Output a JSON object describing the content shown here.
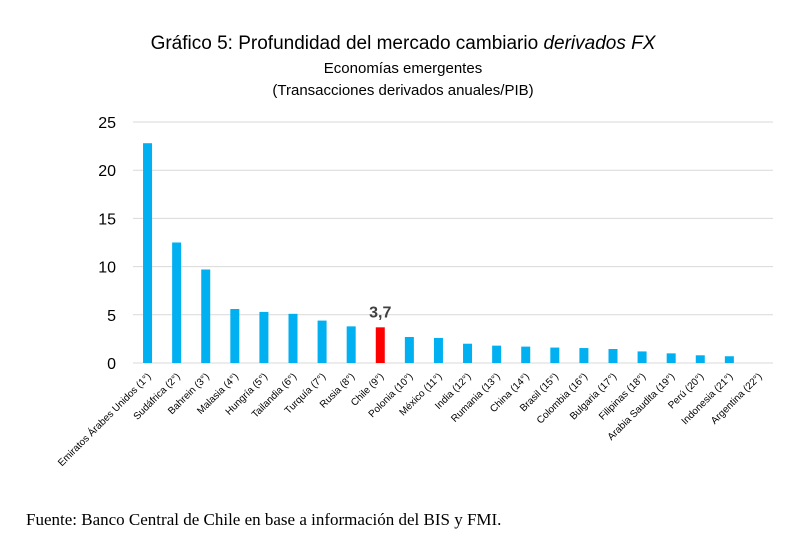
{
  "chart_data": {
    "type": "bar",
    "title": "Gráfico 5: Profundidad del mercado cambiario",
    "title_italic": "derivados FX",
    "subtitle": "Economías emergentes",
    "subtitle2": "(Transacciones derivados anuales/PIB)",
    "categories": [
      "Emiratos Árabes Unidos (1°)",
      "Sudáfrica (2°)",
      "Bahrein (3°)",
      "Malasia (4°)",
      "Hungría (5°)",
      "Tailandia (6°)",
      "Turquía (7°)",
      "Rusia (8°)",
      "Chile (9°)",
      "Polonia (10°)",
      "México (11°)",
      "India (12°)",
      "Rumania (13°)",
      "China (14°)",
      "Brasil (15°)",
      "Colombia (16°)",
      "Bulgaria (17°)",
      "Filipinas (18°)",
      "Arabia Saudita (19°)",
      "Perú (20°)",
      "Indonesia (21°)",
      "Argentina (22°)"
    ],
    "values": [
      22.8,
      12.5,
      9.7,
      5.6,
      5.3,
      5.1,
      4.4,
      3.8,
      3.7,
      2.7,
      2.6,
      2.0,
      1.8,
      1.7,
      1.6,
      1.55,
      1.45,
      1.2,
      1.0,
      0.8,
      0.7,
      0.0
    ],
    "highlight_index": 8,
    "highlight_label": "3,7",
    "ylim": [
      0,
      25
    ],
    "yticks": [
      "0",
      "5",
      "10",
      "15",
      "20",
      "25"
    ],
    "grid": true,
    "legend": "none",
    "colors": {
      "bar": "#00B0F0",
      "highlight": "#FF0000",
      "grid": "#D9D9D9",
      "text": "#000000"
    }
  },
  "source_text": "Fuente: Banco Central de Chile en base a información del BIS y FMI."
}
